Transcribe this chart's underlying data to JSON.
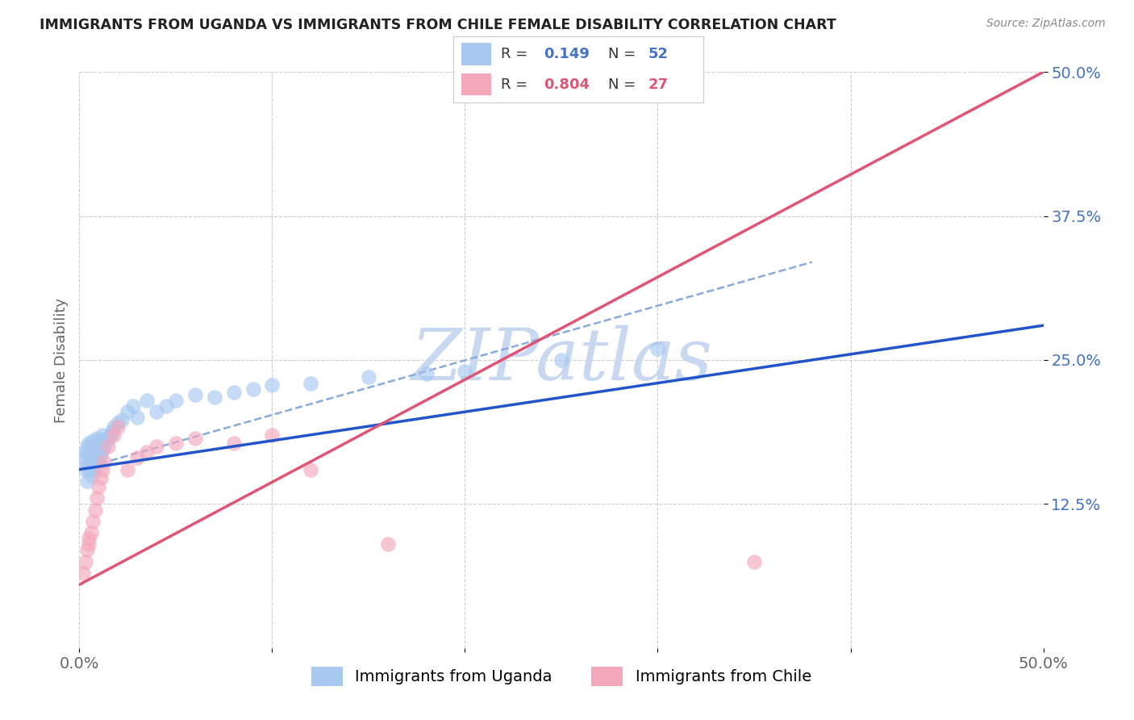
{
  "title": "IMMIGRANTS FROM UGANDA VS IMMIGRANTS FROM CHILE FEMALE DISABILITY CORRELATION CHART",
  "source_text": "Source: ZipAtlas.com",
  "ylabel": "Female Disability",
  "xlim": [
    0.0,
    0.5
  ],
  "ylim": [
    0.0,
    0.5
  ],
  "ytick_positions": [
    0.125,
    0.25,
    0.375,
    0.5
  ],
  "ytick_labels": [
    "12.5%",
    "25.0%",
    "37.5%",
    "50.0%"
  ],
  "legend_uganda": "Immigrants from Uganda",
  "legend_chile": "Immigrants from Chile",
  "r_uganda": 0.149,
  "n_uganda": 52,
  "r_chile": 0.804,
  "n_chile": 27,
  "color_uganda": "#A8C8F0",
  "color_chile": "#F4A8BC",
  "line_color_uganda": "#2255CC",
  "line_color_chile": "#E05575",
  "dashed_line_color": "#88AADD",
  "background_color": "#FFFFFF",
  "watermark_color": "#C8D8F0",
  "title_color": "#222222",
  "source_color": "#888888",
  "tick_color_y": "#4472C4",
  "tick_color_x": "#666666",
  "ylabel_color": "#666666",
  "uganda_x": [
    0.002,
    0.003,
    0.003,
    0.004,
    0.004,
    0.004,
    0.005,
    0.005,
    0.005,
    0.006,
    0.006,
    0.006,
    0.007,
    0.007,
    0.007,
    0.008,
    0.008,
    0.009,
    0.009,
    0.009,
    0.01,
    0.01,
    0.011,
    0.011,
    0.012,
    0.012,
    0.013,
    0.014,
    0.015,
    0.016,
    0.017,
    0.018,
    0.02,
    0.022,
    0.025,
    0.028,
    0.03,
    0.035,
    0.04,
    0.045,
    0.05,
    0.06,
    0.07,
    0.08,
    0.09,
    0.1,
    0.12,
    0.15,
    0.18,
    0.2,
    0.25,
    0.3
  ],
  "uganda_y": [
    0.165,
    0.155,
    0.17,
    0.145,
    0.16,
    0.175,
    0.155,
    0.168,
    0.178,
    0.15,
    0.162,
    0.175,
    0.158,
    0.168,
    0.18,
    0.155,
    0.17,
    0.16,
    0.172,
    0.182,
    0.165,
    0.175,
    0.168,
    0.18,
    0.172,
    0.185,
    0.175,
    0.18,
    0.183,
    0.185,
    0.188,
    0.192,
    0.195,
    0.198,
    0.205,
    0.21,
    0.2,
    0.215,
    0.205,
    0.21,
    0.215,
    0.22,
    0.218,
    0.222,
    0.225,
    0.228,
    0.23,
    0.235,
    0.238,
    0.24,
    0.25,
    0.26
  ],
  "chile_x": [
    0.002,
    0.003,
    0.004,
    0.005,
    0.005,
    0.006,
    0.007,
    0.008,
    0.009,
    0.01,
    0.011,
    0.012,
    0.013,
    0.015,
    0.018,
    0.02,
    0.025,
    0.03,
    0.035,
    0.04,
    0.05,
    0.06,
    0.08,
    0.1,
    0.12,
    0.16,
    0.35
  ],
  "chile_y": [
    0.065,
    0.075,
    0.085,
    0.09,
    0.095,
    0.1,
    0.11,
    0.12,
    0.13,
    0.14,
    0.148,
    0.155,
    0.162,
    0.175,
    0.185,
    0.192,
    0.155,
    0.165,
    0.17,
    0.175,
    0.178,
    0.182,
    0.178,
    0.185,
    0.155,
    0.09,
    0.075
  ],
  "blue_line_x0": 0.0,
  "blue_line_y0": 0.155,
  "blue_line_x1": 0.5,
  "blue_line_y1": 0.28,
  "pink_line_x0": 0.0,
  "pink_line_y0": 0.055,
  "pink_line_x1": 0.5,
  "pink_line_y1": 0.5,
  "dash_line_x0": 0.0,
  "dash_line_y0": 0.155,
  "dash_line_x1": 0.38,
  "dash_line_y1": 0.335
}
